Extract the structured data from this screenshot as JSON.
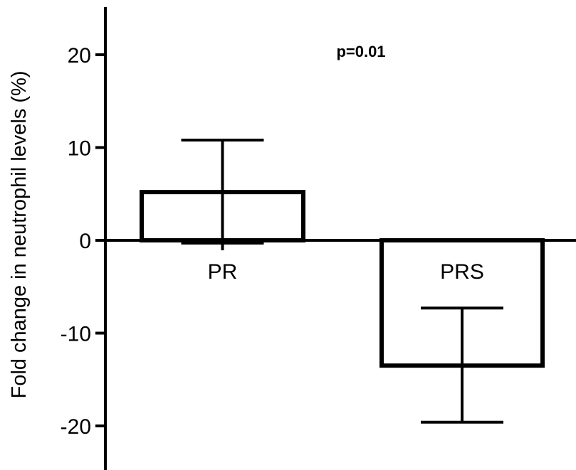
{
  "chart_data": {
    "type": "bar",
    "title": "",
    "xlabel": "",
    "ylabel": "Fold change in neutrophil levels (%)",
    "categories": [
      "PR",
      "PRS"
    ],
    "values": [
      5.2,
      -13.5
    ],
    "error_upper": [
      10.8,
      -7.3
    ],
    "error_lower": [
      -0.3,
      -19.6
    ],
    "ylim": [
      -25,
      25
    ],
    "yticks": [
      20,
      10,
      0,
      -10,
      -20
    ],
    "ytick_labels": [
      "20",
      "10",
      "0",
      "-10",
      "-20"
    ],
    "annotation": "p=0.01",
    "grid": false,
    "legend": "none",
    "bar_fill": "#ffffff",
    "bar_stroke": "#000000"
  }
}
